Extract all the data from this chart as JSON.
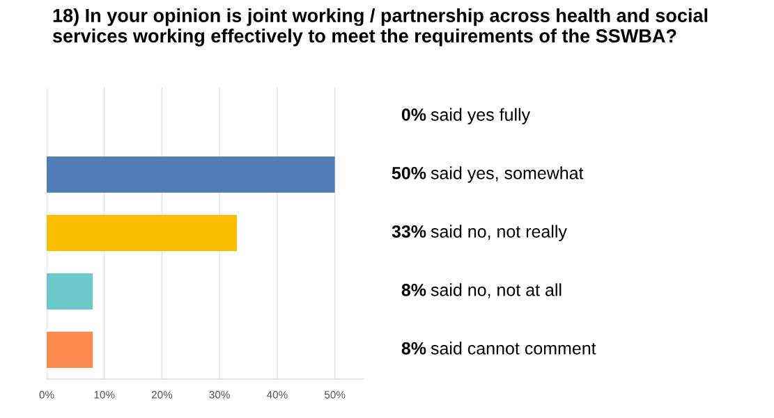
{
  "chart_data": {
    "type": "bar",
    "orientation": "horizontal",
    "title": "18) In your opinion is joint working / partnership across health and social services working effectively to meet the requirements of the SSWBA?",
    "categories": [
      "said yes fully",
      "said yes, somewhat",
      "said no, not really",
      "said no, not at all",
      "said cannot comment"
    ],
    "values": [
      0,
      50,
      33,
      8,
      8
    ],
    "value_labels": [
      "0%",
      "50%",
      "33%",
      "8%",
      "8%"
    ],
    "colors": [
      "#4f7db8",
      "#4f7db8",
      "#f9be00",
      "#6bc9c9",
      "#fd8b4e"
    ],
    "xlim": [
      0,
      55
    ],
    "xticks": [
      {
        "value": 0,
        "label": "0%"
      },
      {
        "value": 10,
        "label": "10%"
      },
      {
        "value": 20,
        "label": "20%"
      },
      {
        "value": 30,
        "label": "30%"
      },
      {
        "value": 40,
        "label": "40%"
      },
      {
        "value": 50,
        "label": "50%"
      }
    ],
    "grid": "x"
  }
}
